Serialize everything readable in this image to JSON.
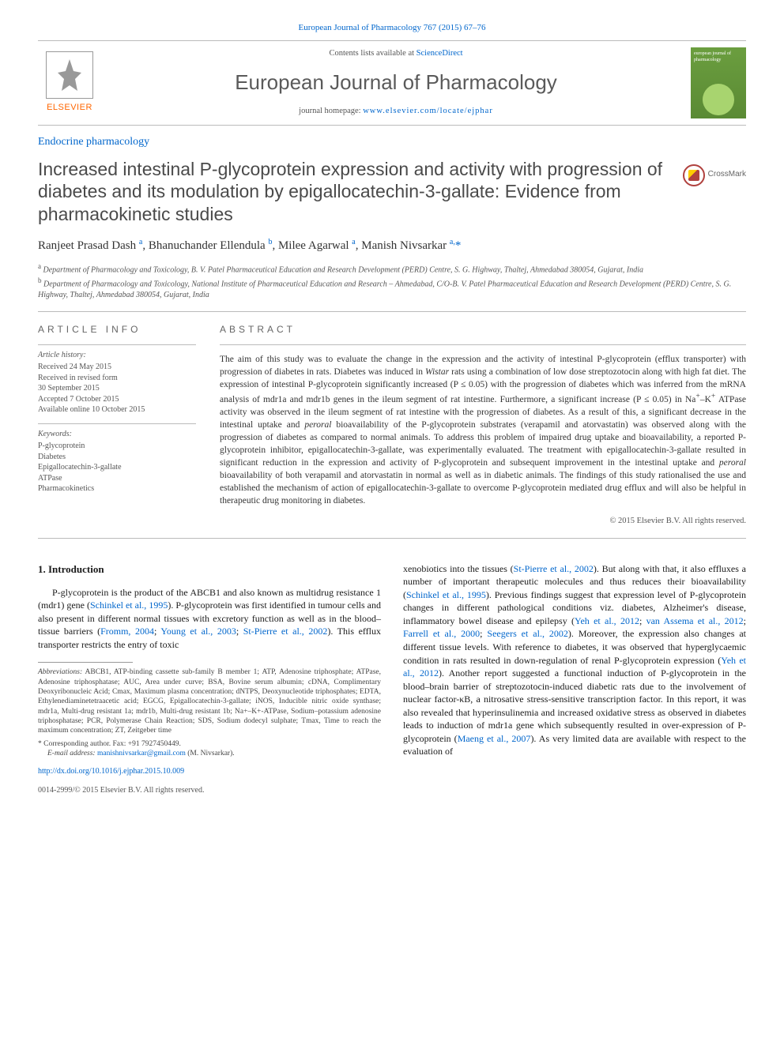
{
  "journal_link_text": "European Journal of Pharmacology 767 (2015) 67–76",
  "header": {
    "contents_prefix": "Contents lists available at ",
    "contents_link": "ScienceDirect",
    "journal_title": "European Journal of Pharmacology",
    "homepage_prefix": "journal homepage: ",
    "homepage_link": "www.elsevier.com/locate/ejphar",
    "publisher": "ELSEVIER"
  },
  "section_label": "Endocrine pharmacology",
  "article_title": "Increased intestinal P-glycoprotein expression and activity with progression of diabetes and its modulation by epigallocatechin-3-gallate: Evidence from pharmacokinetic studies",
  "crossmark_label": "CrossMark",
  "authors_html": "Ranjeet Prasad Dash <sup>a</sup>, Bhanuchander Ellendula <sup>b</sup>, Milee Agarwal <sup>a</sup>, Manish Nivsarkar <sup>a,</sup><span class='corr'>*</span>",
  "affiliations": {
    "a": "Department of Pharmacology and Toxicology, B. V. Patel Pharmaceutical Education and Research Development (PERD) Centre, S. G. Highway, Thaltej, Ahmedabad 380054, Gujarat, India",
    "b": "Department of Pharmacology and Toxicology, National Institute of Pharmaceutical Education and Research – Ahmedabad, C/O-B. V. Patel Pharmaceutical Education and Research Development (PERD) Centre, S. G. Highway, Thaltej, Ahmedabad 380054, Gujarat, India"
  },
  "info": {
    "heading_left": "ARTICLE INFO",
    "heading_right": "ABSTRACT",
    "history_label": "Article history:",
    "history": "Received 24 May 2015\nReceived in revised form\n30 September 2015\nAccepted 7 October 2015\nAvailable online 10 October 2015",
    "keywords_label": "Keywords:",
    "keywords": "P-glycoprotein\nDiabetes\nEpigallocatechin-3-gallate\nATPase\nPharmacokinetics"
  },
  "abstract": "The aim of this study was to evaluate the change in the expression and the activity of intestinal P-glycoprotein (efflux transporter) with progression of diabetes in rats. Diabetes was induced in Wistar rats using a combination of low dose streptozotocin along with high fat diet. The expression of intestinal P-glycoprotein significantly increased (P ≤ 0.05) with the progression of diabetes which was inferred from the mRNA analysis of mdr1a and mdr1b genes in the ileum segment of rat intestine. Furthermore, a significant increase (P ≤ 0.05) in Na+–K+ ATPase activity was observed in the ileum segment of rat intestine with the progression of diabetes. As a result of this, a significant decrease in the intestinal uptake and peroral bioavailability of the P-glycoprotein substrates (verapamil and atorvastatin) was observed along with the progression of diabetes as compared to normal animals. To address this problem of impaired drug uptake and bioavailability, a reported P-glycoprotein inhibitor, epigallocatechin-3-gallate, was experimentally evaluated. The treatment with epigallocatechin-3-gallate resulted in significant reduction in the expression and activity of P-glycoprotein and subsequent improvement in the intestinal uptake and peroral bioavailability of both verapamil and atorvastatin in normal as well as in diabetic animals. The findings of this study rationalised the use and established the mechanism of action of epigallocatechin-3-gallate to overcome P-glycoprotein mediated drug efflux and will also be helpful in therapeutic drug monitoring in diabetes.",
  "copyright": "© 2015 Elsevier B.V. All rights reserved.",
  "body": {
    "section_number": "1.",
    "section_title": "Introduction",
    "col1_p1_pre": "P-glycoprotein is the product of the ABCB1 and also known as multidrug resistance 1 (mdr1) gene (",
    "col1_p1_ref1": "Schinkel et al., 1995",
    "col1_p1_mid1": "). P-glycoprotein was first identified in tumour cells and also present in different normal tissues with excretory function as well as in the blood–tissue barriers (",
    "col1_p1_ref2": "Fromm, 2004",
    "col1_p1_sep1": "; ",
    "col1_p1_ref3": "Young et al., 2003",
    "col1_p1_sep2": "; ",
    "col1_p1_ref4": "St-Pierre et al., 2002",
    "col1_p1_post": "). This efflux transporter restricts the entry of toxic",
    "col2_pre": "xenobiotics into the tissues (",
    "col2_ref1": "St-Pierre et al., 2002",
    "col2_mid1": "). But along with that, it also effluxes a number of important therapeutic molecules and thus reduces their bioavailability (",
    "col2_ref2": "Schinkel et al., 1995",
    "col2_mid2": "). Previous findings suggest that expression level of P-glycoprotein changes in different pathological conditions viz. diabetes, Alzheimer's disease, inflammatory bowel disease and epilepsy (",
    "col2_ref3": "Yeh et al., 2012",
    "col2_sep1": "; ",
    "col2_ref4": "van Assema et al., 2012",
    "col2_sep2": "; ",
    "col2_ref5": "Farrell et al., 2000",
    "col2_sep3": "; ",
    "col2_ref6": "Seegers et al., 2002",
    "col2_mid3": "). Moreover, the expression also changes at different tissue levels. With reference to diabetes, it was observed that hyperglycaemic condition in rats resulted in down-regulation of renal P-glycoprotein expression (",
    "col2_ref7": "Yeh et al., 2012",
    "col2_mid4": "). Another report suggested a functional induction of P-glycoprotein in the blood–brain barrier of streptozotocin-induced diabetic rats due to the involvement of nuclear factor-κB, a nitrosative stress-sensitive transcription factor. In this report, it was also revealed that hyperinsulinemia and increased oxidative stress as observed in diabetes leads to induction of mdr1a gene which subsequently resulted in over-expression of P-glycoprotein (",
    "col2_ref8": "Maeng et al., 2007",
    "col2_post": "). As very limited data are available with respect to the evaluation of"
  },
  "footnotes": {
    "abbrev_label": "Abbreviations:",
    "abbrev_text": " ABCB1, ATP-binding cassette sub-family B member 1; ATP, Adenosine triphosphate; ATPase, Adenosine triphosphatase; AUC, Area under curve; BSA, Bovine serum albumin; cDNA, Complimentary Deoxyribonucleic Acid; Cmax, Maximum plasma concentration; dNTPS, Deoxynucleotide triphosphates; EDTA, Ethylenediaminetetraacetic acid; EGCG, Epigallocatechin-3-gallate; iNOS, Inducible nitric oxide synthase; mdr1a, Multi-drug resistant 1a; mdr1b, Multi-drug resistant 1b; Na+–K+-ATPase, Sodium–potassium adenosine triphosphatase; PCR, Polymerase Chain Reaction; SDS, Sodium dodecyl sulphate; Tmax, Time to reach the maximum concentration; ZT, Zeitgeber time",
    "corr_label": "* Corresponding author. Fax: +91 7927450449.",
    "email_label": "E-mail address:",
    "email": "manishnivsarkar@gmail.com",
    "email_suffix": " (M. Nivsarkar)."
  },
  "footer": {
    "doi": "http://dx.doi.org/10.1016/j.ejphar.2015.10.009",
    "issn_line": "0014-2999/© 2015 Elsevier B.V. All rights reserved."
  }
}
